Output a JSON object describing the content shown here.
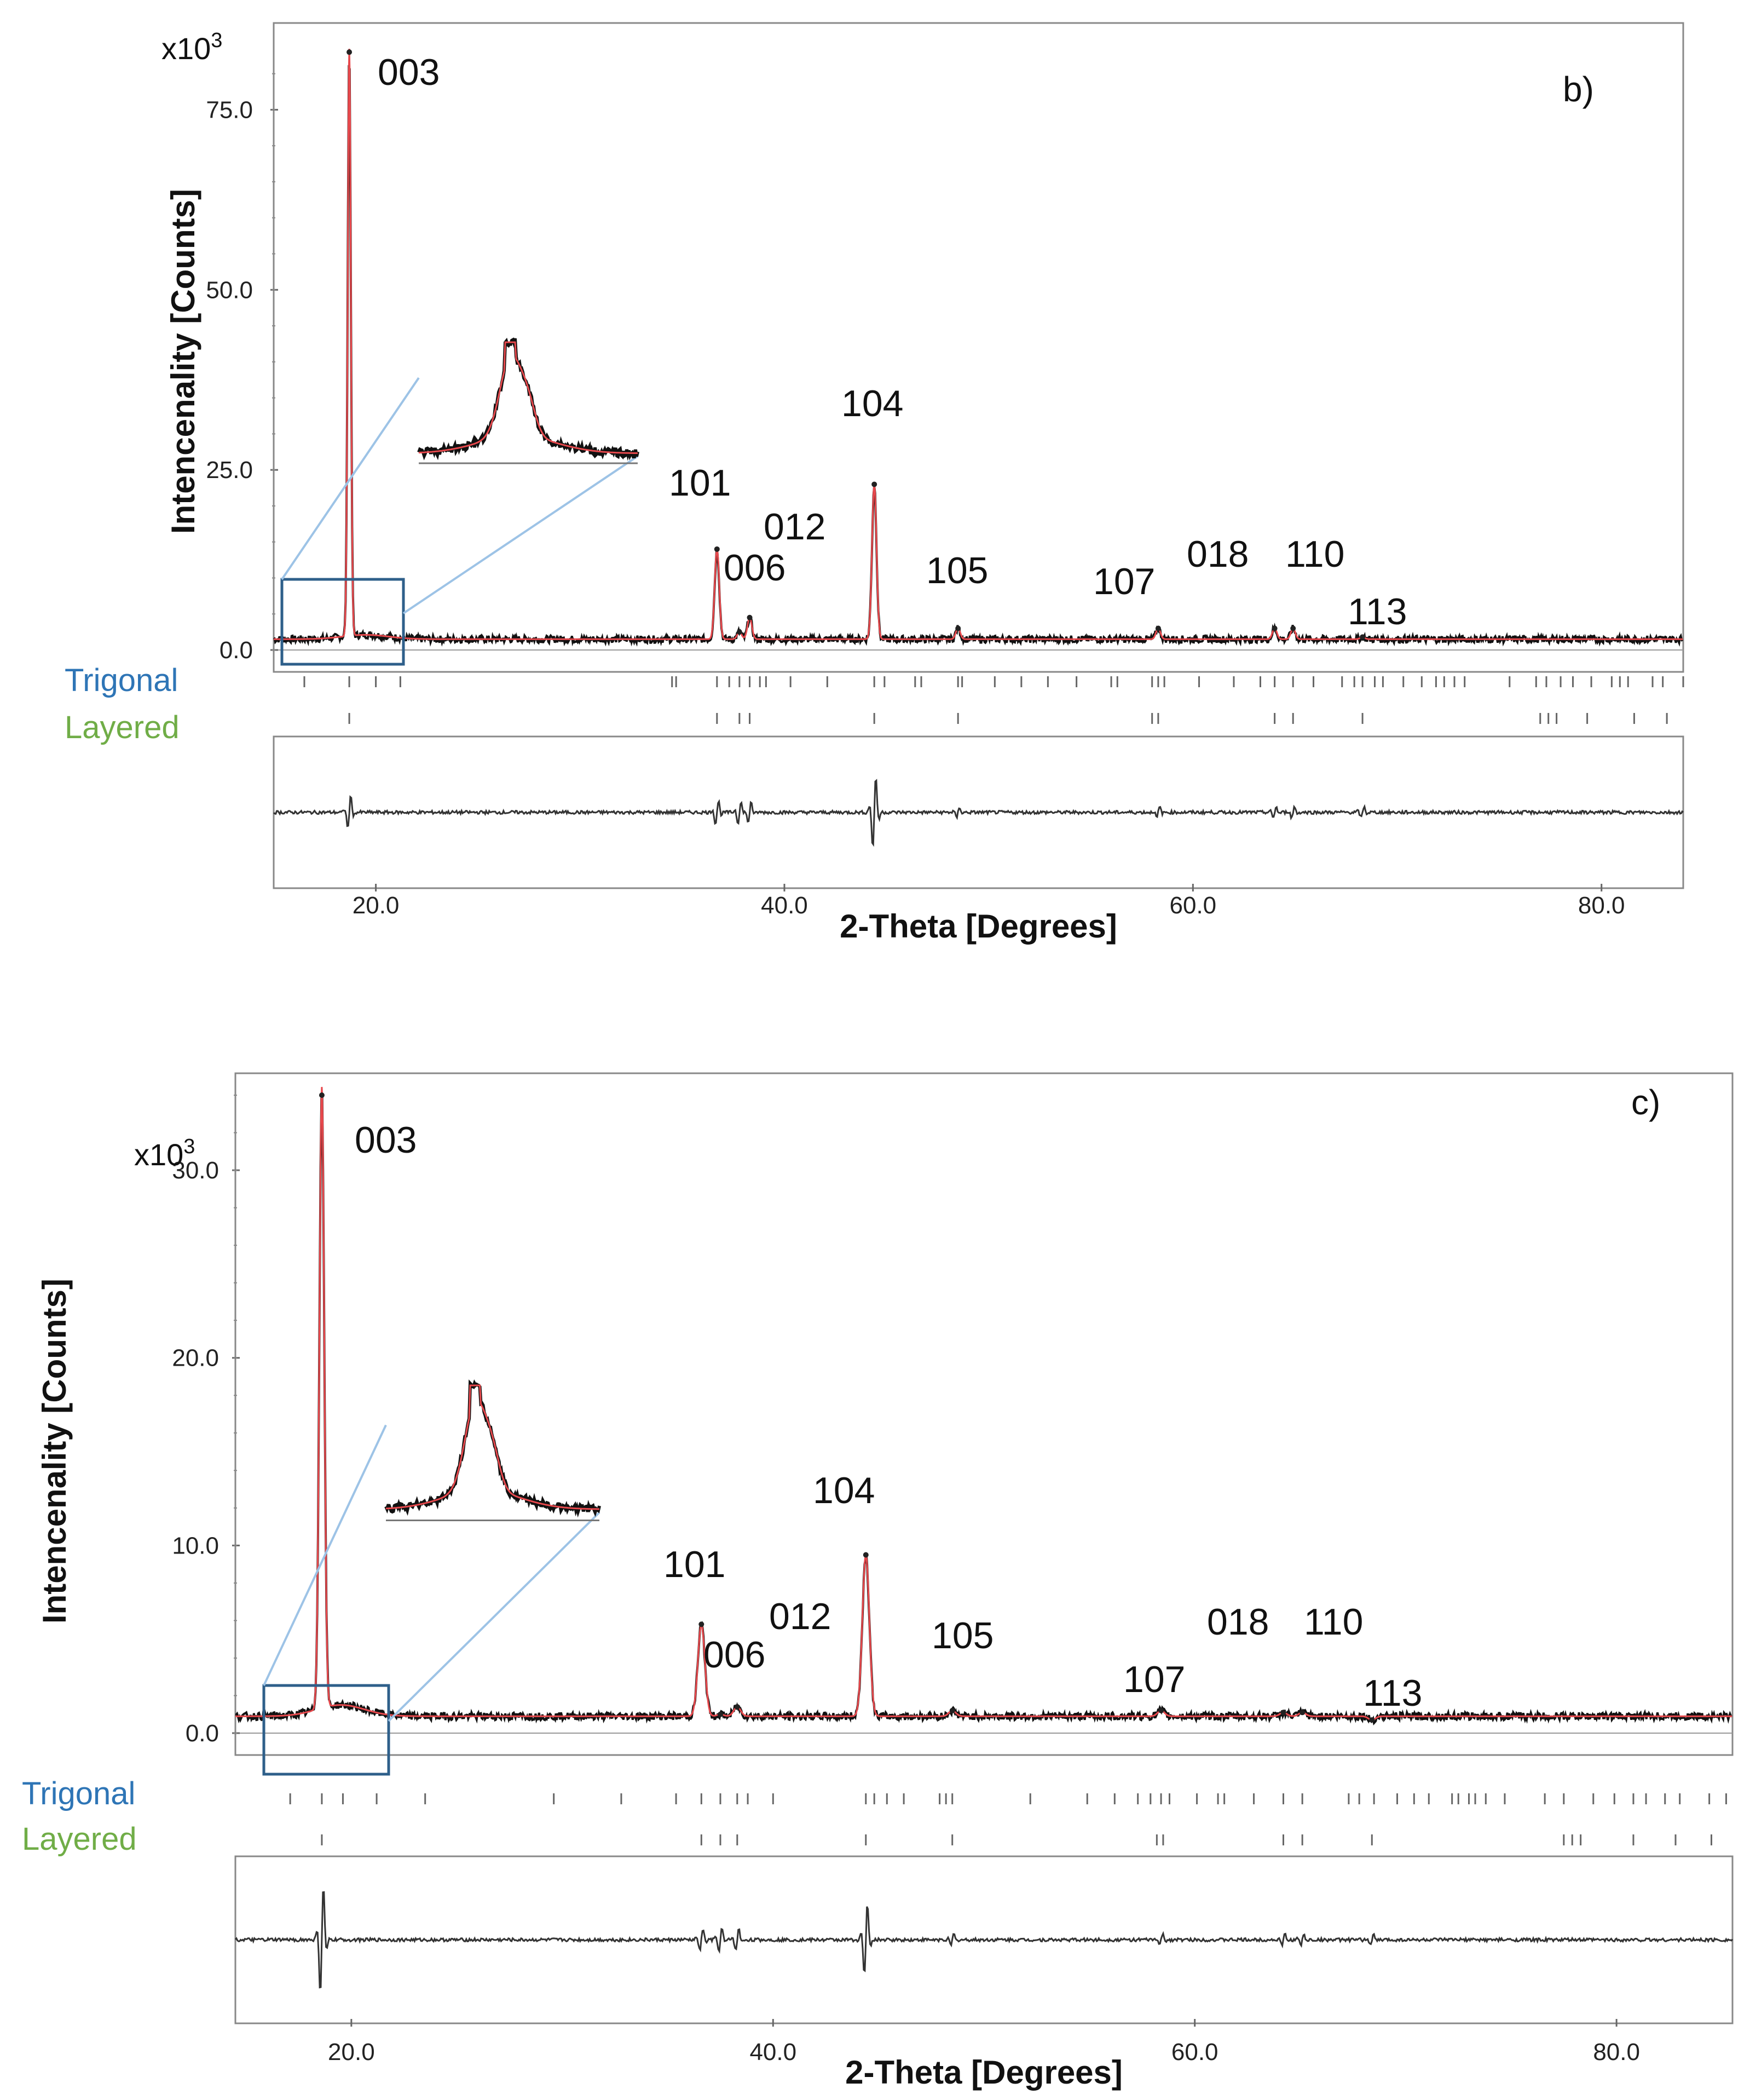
{
  "chart_data": [
    {
      "type": "line",
      "panel_label": "b)",
      "scale_label": "x10",
      "scale_exponent": "3",
      "xlabel": "2-Theta [Degrees]",
      "ylabel": "Intencenality [Counts]",
      "xlim": [
        15,
        84
      ],
      "ylim": [
        0,
        84
      ],
      "x_ticks": [
        20,
        40,
        60,
        80
      ],
      "x_tick_labels": [
        "20.0",
        "40.0",
        "60.0",
        "80.0"
      ],
      "y_ticks": [
        0,
        25,
        50,
        75
      ],
      "y_tick_labels": [
        "0.0",
        "25.0",
        "50.0",
        "75.0"
      ],
      "legend": [
        {
          "name": "Trigonal",
          "color": "#2e75b6"
        },
        {
          "name": "Layered",
          "color": "#70ad47"
        }
      ],
      "peaks": [
        {
          "label": "003",
          "x": 18.7,
          "y": 83
        },
        {
          "label": "101",
          "x": 36.7,
          "y": 14
        },
        {
          "label": "006",
          "x": 37.8,
          "y": 2.5
        },
        {
          "label": "012",
          "x": 38.3,
          "y": 4.5
        },
        {
          "label": "104",
          "x": 44.4,
          "y": 23
        },
        {
          "label": "105",
          "x": 48.5,
          "y": 3
        },
        {
          "label": "107",
          "x": 58.3,
          "y": 3
        },
        {
          "label": "018",
          "x": 64.0,
          "y": 3
        },
        {
          "label": "110",
          "x": 64.9,
          "y": 3
        },
        {
          "label": "113",
          "x": 68.3,
          "y": 1.8
        }
      ],
      "trigonal_ticks": [
        16.5,
        18.7,
        20.0,
        21.2,
        34.5,
        34.7,
        36.7,
        37.3,
        37.8,
        38.3,
        38.8,
        39.1,
        40.3,
        42.1,
        44.4,
        44.9,
        46.4,
        46.7,
        48.5,
        48.7,
        50.3,
        51.6,
        52.9,
        54.3,
        56.0,
        56.3,
        58.0,
        58.3,
        58.6,
        60.3,
        62.0,
        63.3,
        64.0,
        64.9,
        65.9,
        67.3,
        67.9,
        68.3,
        68.9,
        69.3,
        70.3,
        71.2,
        71.9,
        72.3,
        72.8,
        73.3,
        75.5,
        76.8,
        77.3,
        78.0,
        78.6,
        79.5,
        80.5,
        80.9,
        81.3,
        82.5,
        83.0,
        84.0
      ],
      "layered_ticks": [
        18.7,
        36.7,
        37.8,
        38.3,
        44.4,
        48.5,
        58.0,
        58.3,
        64.0,
        64.9,
        68.3,
        77.0,
        77.4,
        77.8,
        79.3,
        81.6,
        83.2
      ]
    },
    {
      "type": "line",
      "panel_label": "c)",
      "scale_label": "x10",
      "scale_exponent": "3",
      "xlabel": "2-Theta [Degrees]",
      "ylabel": "Intencenality [Counts]",
      "xlim": [
        14.5,
        85.5
      ],
      "ylim": [
        0,
        34
      ],
      "x_ticks": [
        20,
        40,
        60,
        80
      ],
      "x_tick_labels": [
        "20.0",
        "40.0",
        "60.0",
        "80.0"
      ],
      "y_ticks": [
        0,
        10,
        20,
        30
      ],
      "y_tick_labels": [
        "0.0",
        "10.0",
        "20.0",
        "30.0"
      ],
      "legend": [
        {
          "name": "Trigonal",
          "color": "#2e75b6"
        },
        {
          "name": "Layered",
          "color": "#70ad47"
        }
      ],
      "peaks": [
        {
          "label": "003",
          "x": 18.6,
          "y": 34
        },
        {
          "label": "101",
          "x": 36.6,
          "y": 5.8
        },
        {
          "label": "006",
          "x": 37.5,
          "y": 1.0
        },
        {
          "label": "012",
          "x": 38.3,
          "y": 1.4
        },
        {
          "label": "104",
          "x": 44.4,
          "y": 9.5
        },
        {
          "label": "105",
          "x": 48.5,
          "y": 1.2
        },
        {
          "label": "107",
          "x": 58.4,
          "y": 1.2
        },
        {
          "label": "018",
          "x": 64.2,
          "y": 1.1
        },
        {
          "label": "110",
          "x": 65.1,
          "y": 1.1
        },
        {
          "label": "113",
          "x": 68.4,
          "y": 0.7
        }
      ],
      "trigonal_ticks": [
        17.1,
        18.6,
        19.6,
        21.2,
        23.5,
        29.6,
        32.8,
        35.4,
        36.6,
        37.5,
        38.3,
        38.8,
        40.0,
        44.4,
        44.8,
        45.4,
        46.2,
        47.9,
        48.2,
        48.5,
        52.2,
        54.9,
        56.2,
        57.3,
        57.9,
        58.4,
        58.8,
        60.1,
        61.1,
        61.4,
        62.8,
        64.2,
        65.1,
        67.3,
        67.8,
        68.5,
        69.6,
        70.4,
        71.1,
        72.2,
        72.5,
        73.0,
        73.3,
        73.8,
        74.7,
        76.6,
        77.5,
        78.9,
        79.9,
        80.8,
        81.4,
        82.3,
        83.0,
        84.4,
        85.2
      ],
      "layered_ticks": [
        18.6,
        36.6,
        37.5,
        38.3,
        44.4,
        48.5,
        58.2,
        58.5,
        64.2,
        65.1,
        68.4,
        77.5,
        77.9,
        78.3,
        80.8,
        82.8,
        84.5
      ]
    }
  ]
}
